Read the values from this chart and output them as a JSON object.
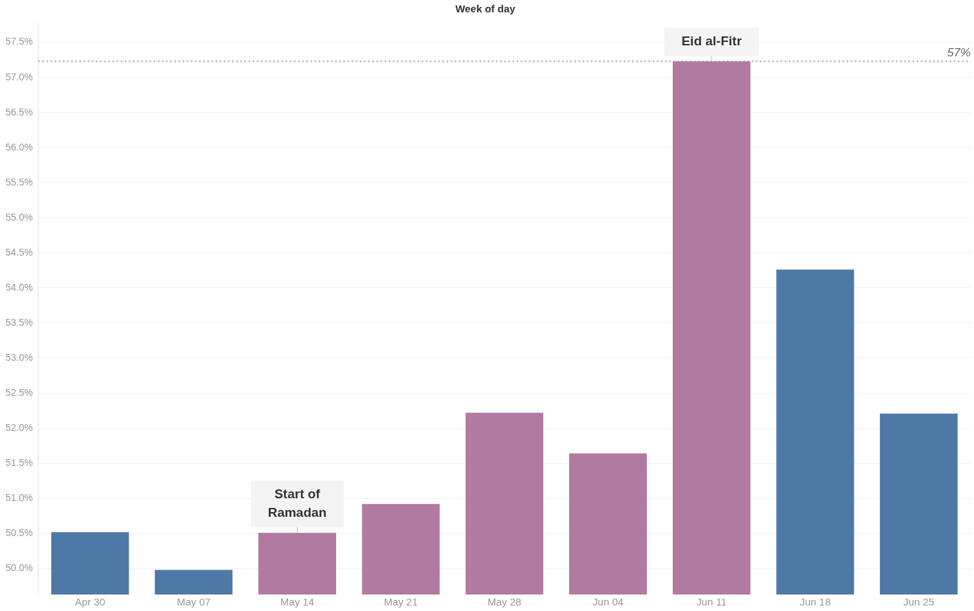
{
  "chart_data": {
    "type": "bar",
    "title": "Week of day",
    "categories": [
      "Apr 30",
      "May 07",
      "May 14",
      "May 21",
      "May 28",
      "Jun 04",
      "Jun 11",
      "Jun 18",
      "Jun 25"
    ],
    "values": [
      50.52,
      49.98,
      50.51,
      50.92,
      52.22,
      51.64,
      57.23,
      54.26,
      52.21
    ],
    "colors": [
      "#4e79a7",
      "#4e79a7",
      "#b07aa1",
      "#b07aa1",
      "#b07aa1",
      "#b07aa1",
      "#b07aa1",
      "#4e79a7",
      "#4e79a7"
    ],
    "ylim": [
      49.63,
      57.8
    ],
    "yticks": [
      {
        "value": 50,
        "label": "50.0%"
      },
      {
        "value": 50.5,
        "label": "50.5%"
      },
      {
        "value": 51,
        "label": "51.0%"
      },
      {
        "value": 51.5,
        "label": "51.5%"
      },
      {
        "value": 52,
        "label": "52.0%"
      },
      {
        "value": 52.5,
        "label": "52.5%"
      },
      {
        "value": 53,
        "label": "53.0%"
      },
      {
        "value": 53.5,
        "label": "53.5%"
      },
      {
        "value": 54,
        "label": "54.0%"
      },
      {
        "value": 54.5,
        "label": "54.5%"
      },
      {
        "value": 55,
        "label": "55.0%"
      },
      {
        "value": 55.5,
        "label": "55.5%"
      },
      {
        "value": 56,
        "label": "56.0%"
      },
      {
        "value": 56.5,
        "label": "56.5%"
      },
      {
        "value": 57,
        "label": "57.0%"
      },
      {
        "value": 57.5,
        "label": "57.5%"
      }
    ],
    "grid": "y",
    "ref_lines": [
      {
        "axis": "y",
        "value": 57.23,
        "label": "57%",
        "color": "#999999",
        "line_style": "dotted"
      }
    ],
    "annotations": [
      {
        "text": "Start of Ramadan",
        "x": "May 14",
        "y": 50.51
      },
      {
        "text": "Eid al-Fitr",
        "x": "Jun 11",
        "y": 57.23
      }
    ]
  }
}
